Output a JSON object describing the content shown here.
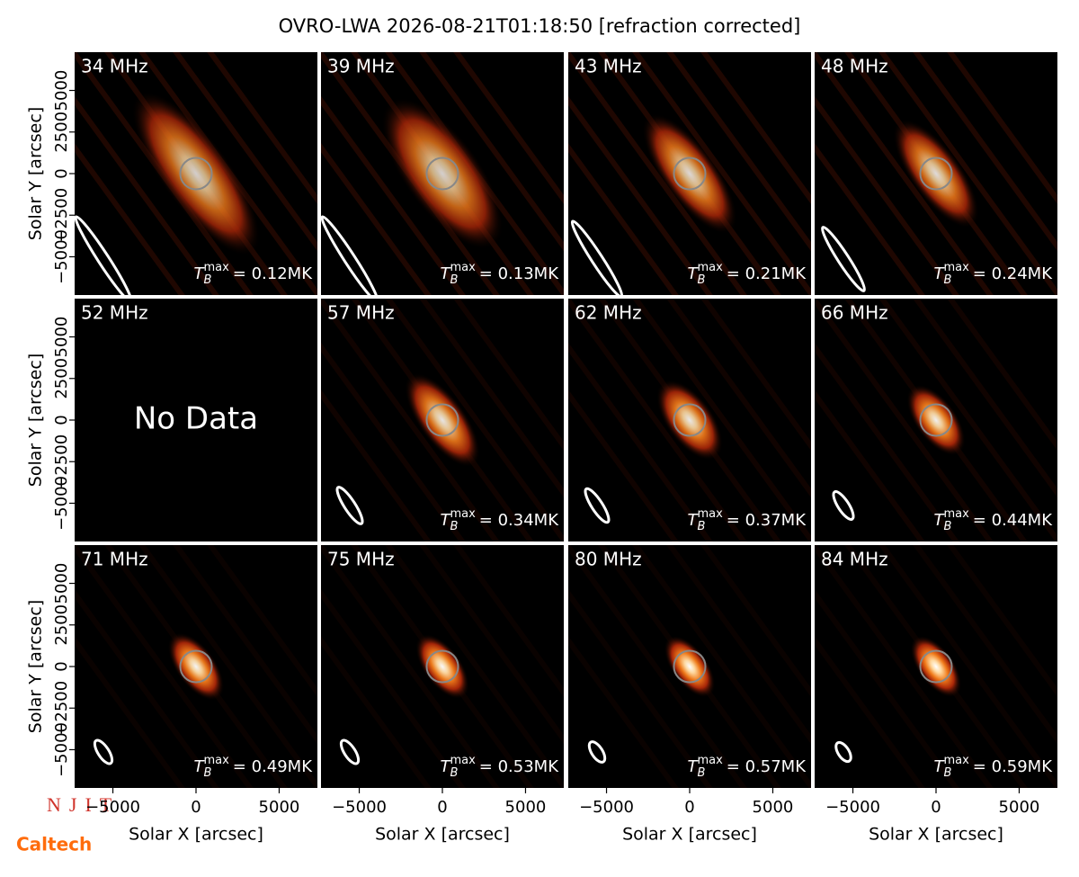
{
  "chart_data": {
    "type": "image_grid",
    "title": "OVRO-LWA 2026-08-21T01:18:50 [refraction corrected]",
    "xlabel": "Solar X [arcsec]",
    "ylabel": "Solar Y [arcsec]",
    "xlim": [
      -7300,
      7300
    ],
    "ylim": [
      -7300,
      7300
    ],
    "xticks": [
      {
        "value": -5000,
        "label": "−5000"
      },
      0,
      5000
    ],
    "yticks": [
      {
        "value": -5000,
        "label": "−5000"
      },
      {
        "value": -2500,
        "label": "−2500"
      },
      0,
      2500,
      5000
    ],
    "tb_symbol": "T",
    "tb_sub": "B",
    "tb_sup": "max",
    "no_data": "No Data",
    "panels": [
      {
        "label": "34 MHz",
        "tb_max": 0.12,
        "value_label": "= 0.12MK"
      },
      {
        "label": "39 MHz",
        "tb_max": 0.13,
        "value_label": "= 0.13MK"
      },
      {
        "label": "43 MHz",
        "tb_max": 0.21,
        "value_label": "= 0.21MK"
      },
      {
        "label": "48 MHz",
        "tb_max": 0.24,
        "value_label": "= 0.24MK"
      },
      {
        "label": "52 MHz",
        "tb_max": null,
        "value_label": null
      },
      {
        "label": "57 MHz",
        "tb_max": 0.34,
        "value_label": "= 0.34MK"
      },
      {
        "label": "62 MHz",
        "tb_max": 0.37,
        "value_label": "= 0.37MK"
      },
      {
        "label": "66 MHz",
        "tb_max": 0.44,
        "value_label": "= 0.44MK"
      },
      {
        "label": "71 MHz",
        "tb_max": 0.49,
        "value_label": "= 0.49MK"
      },
      {
        "label": "75 MHz",
        "tb_max": 0.53,
        "value_label": "= 0.53MK"
      },
      {
        "label": "80 MHz",
        "tb_max": 0.57,
        "value_label": "= 0.57MK"
      },
      {
        "label": "84 MHz",
        "tb_max": 0.59,
        "value_label": "= 0.59MK"
      }
    ],
    "logos": [
      "NJIT",
      "Caltech"
    ]
  }
}
